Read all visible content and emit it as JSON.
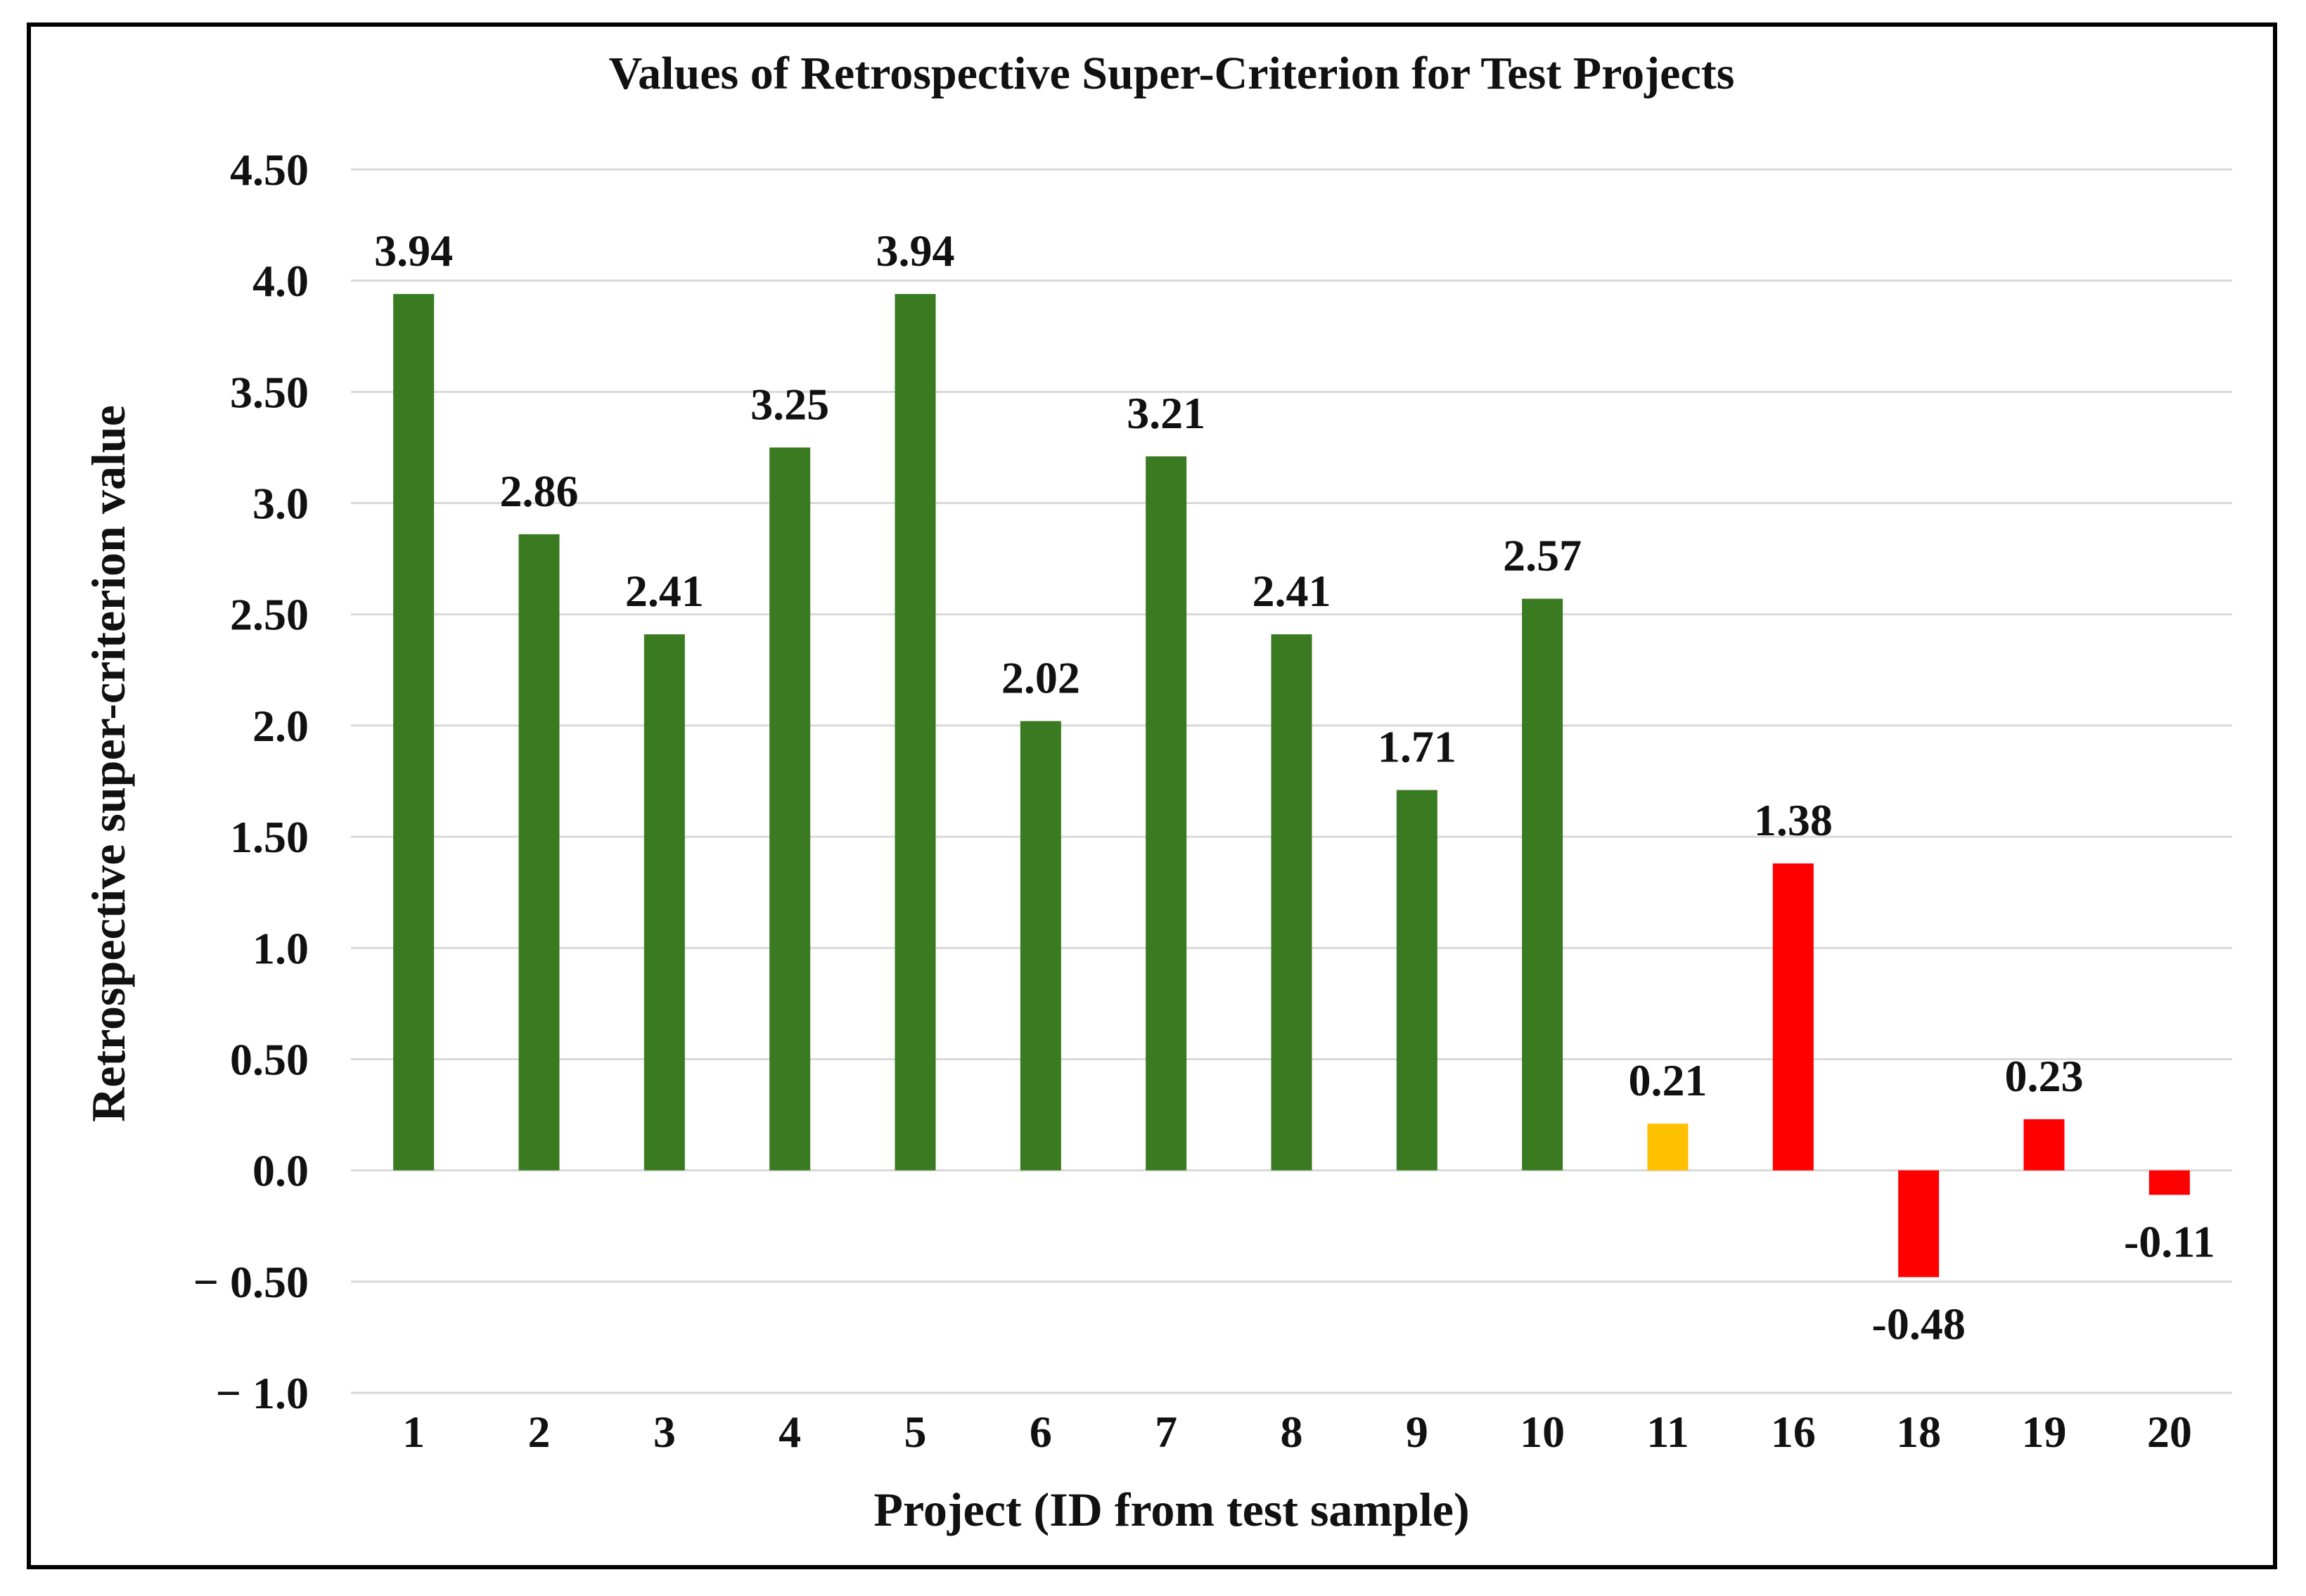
{
  "chart_data": {
    "type": "bar",
    "title": "Values of Retrospective Super-Criterion for Test Projects",
    "xlabel": "Project (ID from test sample)",
    "ylabel": "Retrospective super-criterion value",
    "ylim": [
      -1.0,
      4.5
    ],
    "grid": true,
    "yticks": [
      4.5,
      4.0,
      3.5,
      3.0,
      2.5,
      2.0,
      1.5,
      1.0,
      0.5,
      0.0,
      -0.5,
      -1.0
    ],
    "ytick_labels": [
      "4.50",
      "4.0",
      "3.50",
      "3.0",
      "2.50",
      "2.0",
      "1.50",
      "1.0",
      "0.50",
      "0.0",
      "− 0.50",
      "− 1.0"
    ],
    "categories": [
      "1",
      "2",
      "3",
      "4",
      "5",
      "6",
      "7",
      "8",
      "9",
      "10",
      "11",
      "16",
      "18",
      "19",
      "20"
    ],
    "values": [
      3.94,
      2.86,
      2.41,
      3.25,
      3.94,
      2.02,
      3.21,
      2.41,
      1.71,
      2.57,
      0.21,
      1.38,
      -0.48,
      0.23,
      -0.11
    ],
    "value_labels": [
      "3.94",
      "2.86",
      "2.41",
      "3.25",
      "3.94",
      "2.02",
      "3.21",
      "2.41",
      "1.71",
      "2.57",
      "0.21",
      "1.38",
      "-0.48",
      "0.23",
      "-0.11"
    ],
    "bar_colors": [
      "#3a7a20",
      "#3a7a20",
      "#3a7a20",
      "#3a7a20",
      "#3a7a20",
      "#3a7a20",
      "#3a7a20",
      "#3a7a20",
      "#3a7a20",
      "#3a7a20",
      "#ffc000",
      "#ff0000",
      "#ff0000",
      "#ff0000",
      "#ff0000"
    ]
  },
  "colors": {
    "grid": "#d9d9d9",
    "text": "#111111",
    "frame": "#000000"
  }
}
